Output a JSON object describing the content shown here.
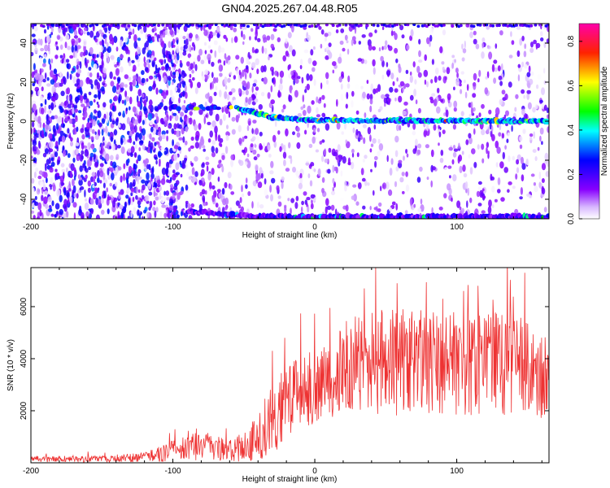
{
  "title": "GN04.2025.267.04.48.R05",
  "chart_data": [
    {
      "type": "heatmap",
      "xlabel": "Height of straight line (km)",
      "ylabel": "Frequency (Hz)",
      "xlim": [
        -200,
        165
      ],
      "ylim": [
        -50,
        50
      ],
      "xticks": [
        -200,
        -100,
        0,
        100
      ],
      "yticks": [
        -40,
        -20,
        0,
        20,
        40
      ],
      "colorbar": {
        "label": "Normalized spectral amplitude",
        "range": [
          0.0,
          0.88
        ],
        "ticks": [
          "0.0",
          "0.2",
          "0.4",
          "0.6",
          "0.8"
        ],
        "colormap": [
          "#ffffff",
          "#8800ff",
          "#0000ff",
          "#00ffff",
          "#00ff00",
          "#ffff00",
          "#ff0000",
          "#ff00aa"
        ]
      },
      "features": {
        "carrier_frequency_hz": 0,
        "carrier_visible_from_km": -55,
        "carrier_bend": [
          [
            -55,
            7
          ],
          [
            -40,
            4
          ],
          [
            -30,
            2
          ],
          [
            0,
            0.5
          ],
          [
            165,
            0
          ]
        ],
        "aliased_band_hz": -49,
        "noise_dense_until_km": -90
      }
    },
    {
      "type": "line",
      "xlabel": "Height of straight line (km)",
      "ylabel": "SNR (10 * v/v)",
      "xlim": [
        -200,
        165
      ],
      "ylim": [
        0,
        7500
      ],
      "xticks": [
        -200,
        -100,
        0,
        100
      ],
      "yticks": [
        2000,
        4000,
        6000
      ],
      "color": "#ee3333",
      "envelope": [
        {
          "x": -200,
          "mean": 150,
          "spread": 120
        },
        {
          "x": -150,
          "mean": 150,
          "spread": 130
        },
        {
          "x": -120,
          "mean": 220,
          "spread": 200
        },
        {
          "x": -100,
          "mean": 450,
          "spread": 400
        },
        {
          "x": -80,
          "mean": 650,
          "spread": 600
        },
        {
          "x": -60,
          "mean": 450,
          "spread": 400
        },
        {
          "x": -45,
          "mean": 700,
          "spread": 700
        },
        {
          "x": -30,
          "mean": 1800,
          "spread": 1500
        },
        {
          "x": -10,
          "mean": 2700,
          "spread": 1400
        },
        {
          "x": 10,
          "mean": 3200,
          "spread": 1500
        },
        {
          "x": 30,
          "mean": 3800,
          "spread": 1900
        },
        {
          "x": 60,
          "mean": 3900,
          "spread": 2100
        },
        {
          "x": 100,
          "mean": 3800,
          "spread": 2000
        },
        {
          "x": 140,
          "mean": 3800,
          "spread": 2000
        },
        {
          "x": 165,
          "mean": 3200,
          "spread": 1500
        }
      ],
      "peaks": [
        {
          "x": -30,
          "y": 4300
        },
        {
          "x": -21,
          "y": 4800
        },
        {
          "x": 43,
          "y": 7500
        },
        {
          "x": 35,
          "y": 6700
        },
        {
          "x": 58,
          "y": 6900
        },
        {
          "x": 90,
          "y": 6300
        },
        {
          "x": 105,
          "y": 6600
        },
        {
          "x": 115,
          "y": 6800
        },
        {
          "x": 148,
          "y": 7300
        }
      ]
    }
  ]
}
